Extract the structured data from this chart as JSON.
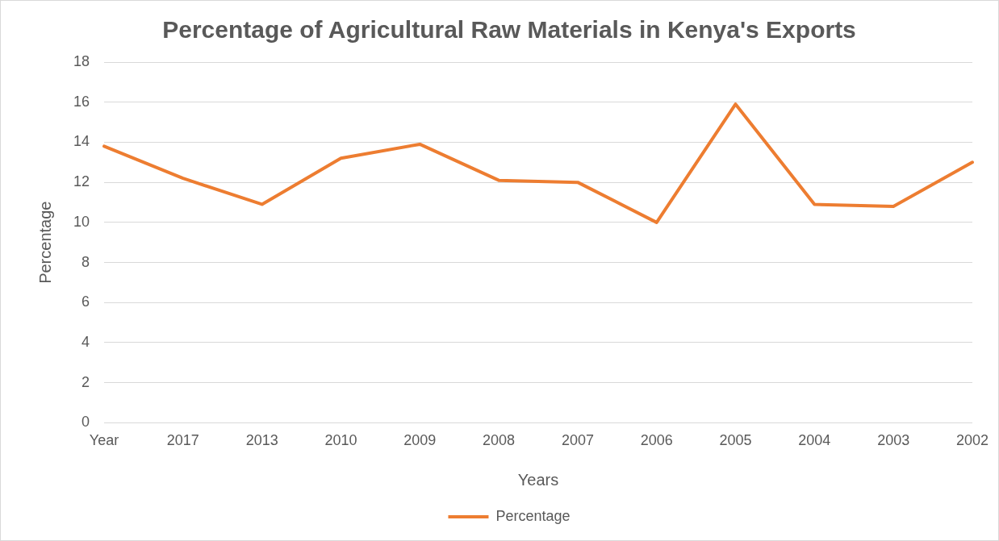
{
  "chart_data": {
    "type": "line",
    "title": "Percentage of Agricultural Raw Materials in Kenya's Exports",
    "xlabel": "Years",
    "ylabel": "Percentage",
    "categories": [
      "Year",
      "2017",
      "2013",
      "2010",
      "2009",
      "2008",
      "2007",
      "2006",
      "2005",
      "2004",
      "2003",
      "2002"
    ],
    "series": [
      {
        "name": "Percentage",
        "color": "#ed7d31",
        "values": [
          13.8,
          12.2,
          10.9,
          13.2,
          13.9,
          12.1,
          12.0,
          10.0,
          15.9,
          10.9,
          10.8,
          13.0
        ]
      }
    ],
    "ylim": [
      0,
      18
    ],
    "yticks": [
      0,
      2,
      4,
      6,
      8,
      10,
      12,
      14,
      16,
      18
    ],
    "grid": "y",
    "legend": "bottom",
    "marker": "none",
    "line_style": "solid"
  }
}
